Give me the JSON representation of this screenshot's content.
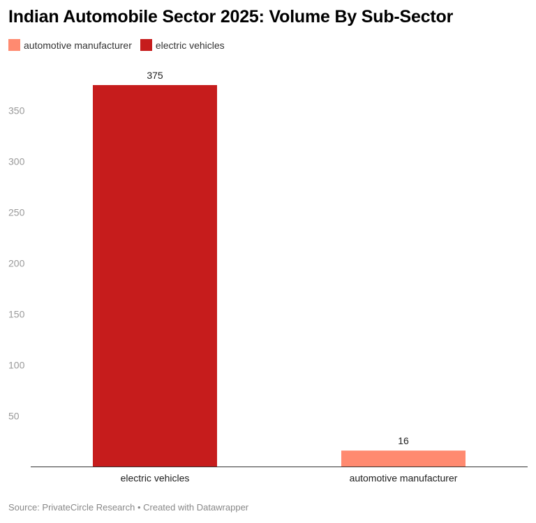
{
  "title": "Indian Automobile Sector 2025: Volume By Sub-Sector",
  "legend": [
    {
      "label": "automotive manufacturer",
      "color": "#ff8a70"
    },
    {
      "label": "electric vehicles",
      "color": "#c61c1c"
    }
  ],
  "source": "Source: PrivateCircle Research • Created with Datawrapper",
  "chart_data": {
    "type": "bar",
    "categories": [
      "electric vehicles",
      "automotive manufacturer"
    ],
    "values": [
      375,
      16
    ],
    "value_labels": [
      "375",
      "16"
    ],
    "colors": [
      "#c61c1c",
      "#ff8a70"
    ],
    "yticks": [
      50,
      100,
      150,
      200,
      250,
      300,
      350
    ],
    "ylim": [
      0,
      375
    ],
    "grid": false,
    "legend_position": "top-left"
  }
}
